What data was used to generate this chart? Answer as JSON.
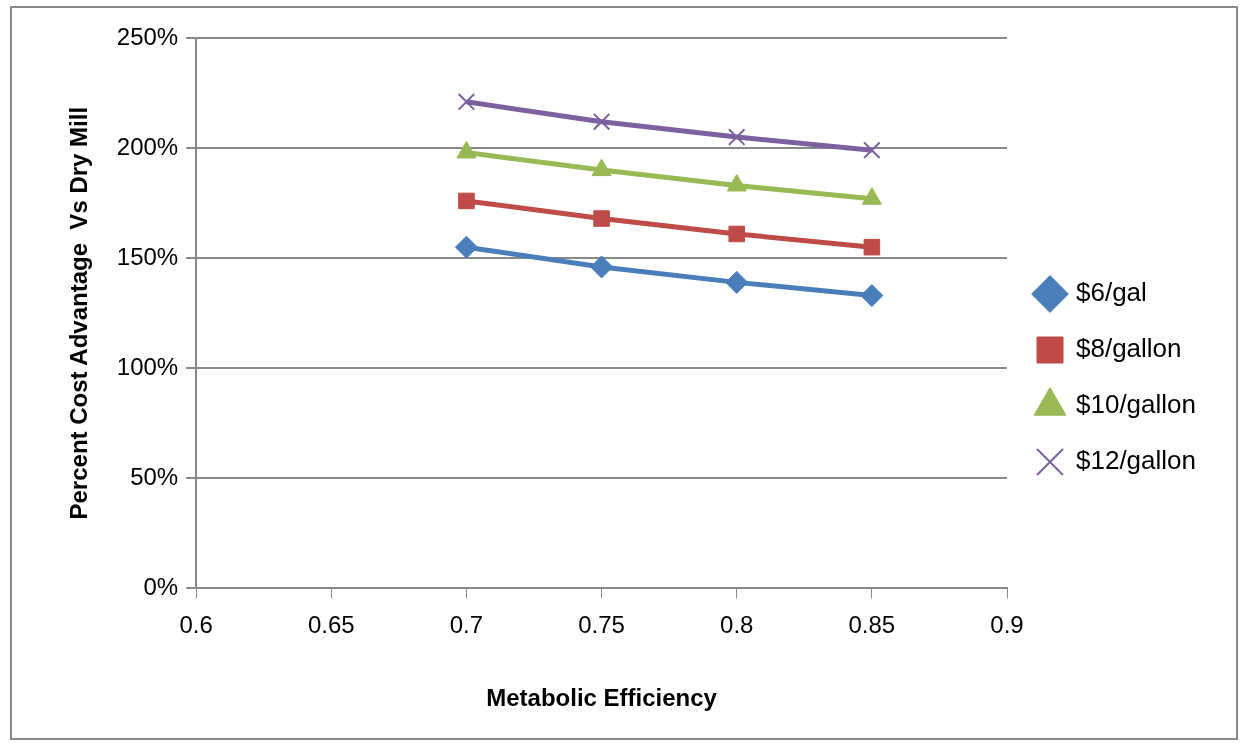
{
  "chart_data": {
    "type": "line",
    "xlabel": "Metabolic Efficiency",
    "ylabel": "Percent Cost Advantage  Vs Dry Mill",
    "x": [
      0.7,
      0.75,
      0.8,
      0.85
    ],
    "series": [
      {
        "name": "$6/gal",
        "color": "#4a7ebb",
        "marker": "diamond",
        "values": [
          155,
          146,
          139,
          133
        ]
      },
      {
        "name": "$8/gallon",
        "color": "#be4b48",
        "marker": "square",
        "values": [
          176,
          168,
          161,
          155
        ]
      },
      {
        "name": "$10/gallon",
        "color": "#98b954",
        "marker": "triangle",
        "values": [
          198,
          190,
          183,
          177
        ]
      },
      {
        "name": "$12/gallon",
        "color": "#7d60a0",
        "marker": "cross",
        "values": [
          221,
          212,
          205,
          199
        ]
      }
    ],
    "xlim": [
      0.6,
      0.9
    ],
    "xticks": [
      0.6,
      0.65,
      0.7,
      0.75,
      0.8,
      0.85,
      0.9
    ],
    "ylim": [
      0,
      250
    ],
    "yticks": [
      {
        "value": 0,
        "label": "0%"
      },
      {
        "value": 50,
        "label": "50%"
      },
      {
        "value": 100,
        "label": "100%"
      },
      {
        "value": 150,
        "label": "150%"
      },
      {
        "value": 200,
        "label": "200%"
      },
      {
        "value": 250,
        "label": "250%"
      }
    ],
    "grid": "y",
    "legend": "right"
  }
}
